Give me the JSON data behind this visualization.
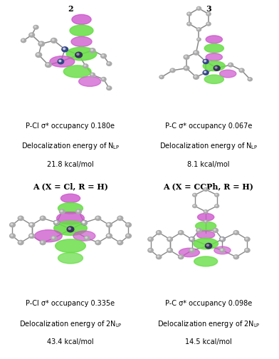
{
  "panels": [
    {
      "label": "2",
      "row": 0,
      "col": 0,
      "line1": "P-Cl σ* occupancy 0.180e",
      "line2": "Delocalization energy of N",
      "line2_sub": "LP",
      "line3": "21.8 kcal/mol"
    },
    {
      "label": "3",
      "row": 0,
      "col": 1,
      "line1": "P-C σ* occupancy 0.067e",
      "line2": "Delocalization energy of N",
      "line2_sub": "LP",
      "line3": "8.1 kcal/mol"
    },
    {
      "label": "A (X = Cl, R = H)",
      "row": 1,
      "col": 0,
      "line1": "P-Cl σ* occupancy 0.335e",
      "line2": "Delocalization energy of 2N",
      "line2_sub": "LP",
      "line3": "43.4 kcal/mol"
    },
    {
      "label": "A (X = CCPh, R = H)",
      "row": 1,
      "col": 1,
      "line1": "P-C σ* occupancy 0.098e",
      "line2": "Delocalization energy of 2N",
      "line2_sub": "LP",
      "line3": "14.5 kcal/mol"
    }
  ],
  "green": "#66dd44",
  "purple": "#cc55cc",
  "gray_atom": "#aaaaaa",
  "dark_atom": "#333355",
  "bond_color": "#888888",
  "bg": "#ffffff"
}
